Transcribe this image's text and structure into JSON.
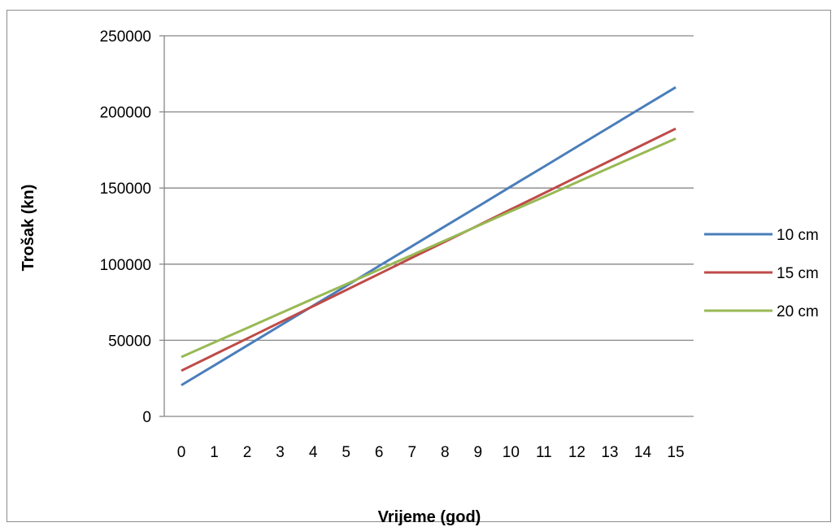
{
  "chart_data": {
    "type": "line",
    "x": [
      0,
      1,
      2,
      3,
      4,
      5,
      6,
      7,
      8,
      9,
      10,
      11,
      12,
      13,
      14,
      15
    ],
    "xlabel": "Vrijeme (god)",
    "ylabel": "Trošak (kn)",
    "ylim": [
      0,
      250000
    ],
    "yticks": [
      0,
      50000,
      100000,
      150000,
      200000,
      250000
    ],
    "ytick_labels": [
      "0",
      "50000",
      "100000",
      "150000",
      "200000",
      "250000"
    ],
    "xtick_labels": [
      "0",
      "1",
      "2",
      "3",
      "4",
      "5",
      "6",
      "7",
      "8",
      "9",
      "10",
      "11",
      "12",
      "13",
      "14",
      "15"
    ],
    "grid": "horizontal",
    "legend_position": "right",
    "series": [
      {
        "name": "10 cm",
        "color": "#4a7ebb",
        "values": [
          20500,
          33500,
          46600,
          59600,
          72700,
          85700,
          98800,
          111800,
          124900,
          137900,
          151000,
          164000,
          177100,
          190100,
          203200,
          216200
        ]
      },
      {
        "name": "15 cm",
        "color": "#be4b48",
        "values": [
          30000,
          40600,
          51200,
          61800,
          72400,
          83000,
          93600,
          104200,
          114800,
          125400,
          136000,
          146600,
          157200,
          167800,
          178400,
          189000
        ]
      },
      {
        "name": "20 cm",
        "color": "#98b954",
        "values": [
          39000,
          48600,
          58100,
          67700,
          77300,
          86800,
          96400,
          106000,
          115500,
          125100,
          134700,
          144200,
          153800,
          163400,
          172900,
          182500
        ]
      }
    ]
  }
}
